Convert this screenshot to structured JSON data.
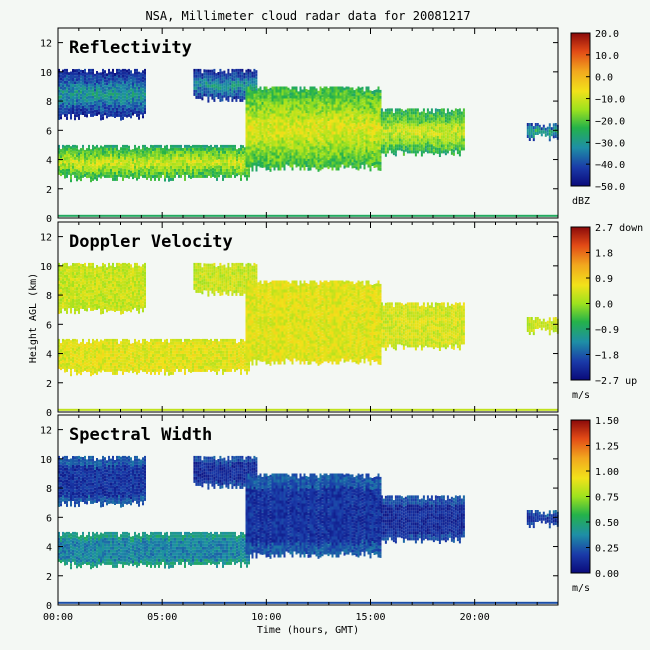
{
  "title": "NSA, Millimeter cloud radar data for 20081217",
  "xlabel": "Time (hours, GMT)",
  "ylabel": "Height AGL (km)",
  "chart_data": [
    {
      "type": "heatmap",
      "title": "Reflectivity",
      "x_ticks": [
        "00:00",
        "05:00",
        "10:00",
        "15:00",
        "20:00"
      ],
      "x_tick_values": [
        0,
        5,
        10,
        15,
        20
      ],
      "xlim": [
        0,
        24
      ],
      "y_ticks": [
        "0",
        "2",
        "4",
        "6",
        "8",
        "10",
        "12"
      ],
      "ylim": [
        0,
        13
      ],
      "colorbar": {
        "unit": "dBZ",
        "ticks": [
          "20.0",
          "10.0",
          "0.0",
          "−10.0",
          "−20.0",
          "−30.0",
          "−40.0",
          "−50.0"
        ],
        "range": [
          -50,
          20
        ]
      },
      "regions": [
        {
          "x": [
            0,
            9.2
          ],
          "y": [
            2.8,
            5.0
          ],
          "value": -10
        },
        {
          "x": [
            0,
            4.2
          ],
          "y": [
            7.0,
            10.2
          ],
          "value": -30
        },
        {
          "x": [
            6.5,
            9.5
          ],
          "y": [
            8.2,
            10.2
          ],
          "value": -30
        },
        {
          "x": [
            9.0,
            15.5
          ],
          "y": [
            3.5,
            9.0
          ],
          "value": -8
        },
        {
          "x": [
            15.5,
            19.5
          ],
          "y": [
            4.5,
            7.5
          ],
          "value": -10
        },
        {
          "x": [
            22.5,
            24
          ],
          "y": [
            5.6,
            6.5
          ],
          "value": -25
        }
      ]
    },
    {
      "type": "heatmap",
      "title": "Doppler Velocity",
      "x_ticks": [
        "00:00",
        "05:00",
        "10:00",
        "15:00",
        "20:00"
      ],
      "x_tick_values": [
        0,
        5,
        10,
        15,
        20
      ],
      "xlim": [
        0,
        24
      ],
      "y_ticks": [
        "0",
        "2",
        "4",
        "6",
        "8",
        "10",
        "12"
      ],
      "ylim": [
        0,
        13
      ],
      "colorbar": {
        "unit": "m/s",
        "ticks": [
          "2.7 down",
          "1.8",
          "0.9",
          "0.0",
          "−0.9",
          "−1.8",
          "−2.7 up"
        ],
        "range": [
          -2.7,
          2.7
        ]
      },
      "regions": [
        {
          "x": [
            0,
            9.2
          ],
          "y": [
            2.8,
            5.0
          ],
          "value": 0.5
        },
        {
          "x": [
            0,
            4.2
          ],
          "y": [
            7.0,
            10.2
          ],
          "value": 0.3
        },
        {
          "x": [
            6.5,
            9.5
          ],
          "y": [
            8.2,
            10.2
          ],
          "value": 0.3
        },
        {
          "x": [
            9.0,
            15.5
          ],
          "y": [
            3.5,
            9.0
          ],
          "value": 0.5
        },
        {
          "x": [
            15.5,
            19.5
          ],
          "y": [
            4.5,
            7.5
          ],
          "value": 0.4
        },
        {
          "x": [
            22.5,
            24
          ],
          "y": [
            5.6,
            6.5
          ],
          "value": 0.3
        }
      ]
    },
    {
      "type": "heatmap",
      "title": "Spectral Width",
      "x_ticks": [
        "00:00",
        "05:00",
        "10:00",
        "15:00",
        "20:00"
      ],
      "x_tick_values": [
        0,
        5,
        10,
        15,
        20
      ],
      "xlim": [
        0,
        24
      ],
      "y_ticks": [
        "0",
        "2",
        "4",
        "6",
        "8",
        "10",
        "12"
      ],
      "ylim": [
        0,
        13
      ],
      "colorbar": {
        "unit": "m/s",
        "ticks": [
          "1.50",
          "1.25",
          "1.00",
          "0.75",
          "0.50",
          "0.25",
          "0.00"
        ],
        "range": [
          0,
          1.5
        ]
      },
      "regions": [
        {
          "x": [
            0,
            9.2
          ],
          "y": [
            2.8,
            5.0
          ],
          "value": 0.35
        },
        {
          "x": [
            0,
            4.2
          ],
          "y": [
            7.0,
            10.2
          ],
          "value": 0.15
        },
        {
          "x": [
            6.5,
            9.5
          ],
          "y": [
            8.2,
            10.2
          ],
          "value": 0.12
        },
        {
          "x": [
            9.0,
            15.5
          ],
          "y": [
            3.5,
            9.0
          ],
          "value": 0.15
        },
        {
          "x": [
            15.5,
            19.5
          ],
          "y": [
            4.5,
            7.5
          ],
          "value": 0.12
        },
        {
          "x": [
            22.5,
            24
          ],
          "y": [
            5.6,
            6.5
          ],
          "value": 0.15
        }
      ]
    }
  ]
}
